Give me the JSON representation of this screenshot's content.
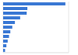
{
  "chart_data": {
    "type": "bar",
    "orientation": "horizontal",
    "categories": [
      null,
      null,
      null,
      null,
      null,
      null,
      null,
      null,
      null,
      null,
      null
    ],
    "values": [
      95,
      37,
      36,
      26,
      18,
      14,
      11,
      9,
      7,
      5,
      3
    ],
    "color": "#3a78d4",
    "xlim": [
      0,
      100
    ],
    "xticks": [
      0,
      25,
      50,
      75,
      100
    ],
    "grid": true,
    "tick_labels": false
  }
}
